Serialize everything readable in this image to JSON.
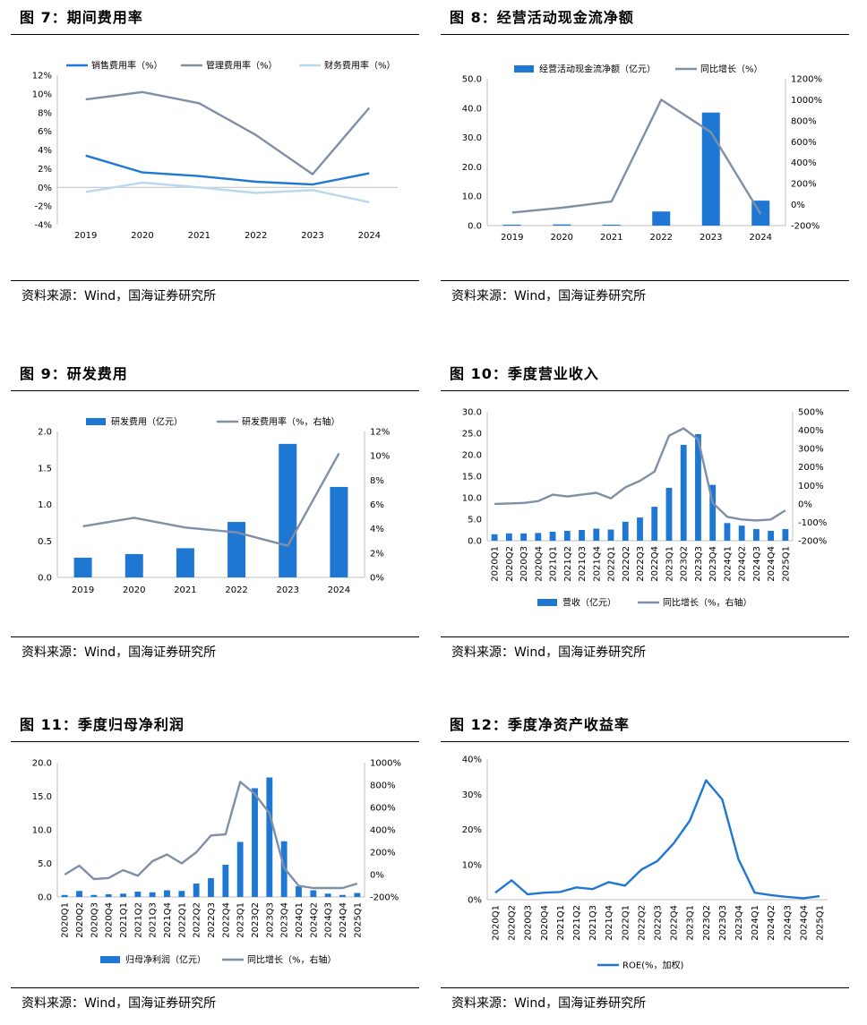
{
  "source": "资料来源：Wind，国海证券研究所",
  "chart_data": [
    {
      "title": "图 7：期间费用率",
      "type": "line",
      "categories": [
        "2019",
        "2020",
        "2021",
        "2022",
        "2023",
        "2024"
      ],
      "y_ticks": [
        "12%",
        "10%",
        "8%",
        "6%",
        "4%",
        "2%",
        "0%",
        "-2%",
        "-4%"
      ],
      "ylim": [
        -4,
        12
      ],
      "legend_position": "top",
      "series": [
        {
          "name": "销售费用率（%）",
          "color": "#1f77d4",
          "values": [
            3.4,
            1.6,
            1.2,
            0.6,
            0.3,
            1.5
          ]
        },
        {
          "name": "管理费用率（%）",
          "color": "#7f8fa6",
          "values": [
            9.4,
            10.2,
            9.0,
            5.6,
            1.4,
            8.5
          ]
        },
        {
          "name": "财务费用率（%）",
          "color": "#b8d8f0",
          "values": [
            -0.5,
            0.5,
            0.0,
            -0.6,
            -0.3,
            -1.6
          ]
        }
      ]
    },
    {
      "title": "图 8：经营活动现金流净额",
      "type": "bar+line",
      "categories": [
        "2019",
        "2020",
        "2021",
        "2022",
        "2023",
        "2024"
      ],
      "y_ticks": [
        "50.0",
        "40.0",
        "30.0",
        "20.0",
        "10.0",
        "0.0"
      ],
      "y2_ticks": [
        "1200%",
        "1000%",
        "800%",
        "600%",
        "400%",
        "200%",
        "0%",
        "-200%"
      ],
      "ylim": [
        0,
        50
      ],
      "y2lim": [
        -200,
        1200
      ],
      "legend_position": "top",
      "bar": {
        "name": "经营活动现金流净额（亿元）",
        "color": "#1f77d4",
        "values": [
          0.3,
          0.4,
          0.3,
          4.8,
          38.5,
          8.5
        ]
      },
      "line": {
        "name": "同比增长（%）",
        "color": "#7f8fa6",
        "values": [
          -75,
          -30,
          30,
          1000,
          690,
          -90
        ]
      }
    },
    {
      "title": "图 9：研发费用",
      "type": "bar+line",
      "categories": [
        "2019",
        "2020",
        "2021",
        "2022",
        "2023",
        "2024"
      ],
      "y_ticks": [
        "2.0",
        "1.5",
        "1.0",
        "0.5",
        "0.0"
      ],
      "y2_ticks": [
        "12%",
        "10%",
        "8%",
        "6%",
        "4%",
        "2%",
        "0%"
      ],
      "ylim": [
        0,
        2
      ],
      "y2lim": [
        0,
        12
      ],
      "legend_position": "top",
      "bar": {
        "name": "研发费用（亿元）",
        "color": "#1f77d4",
        "values": [
          0.27,
          0.32,
          0.4,
          0.76,
          1.83,
          1.24
        ]
      },
      "line": {
        "name": "研发费用率（%，右轴）",
        "color": "#7f8fa6",
        "values": [
          4.2,
          4.9,
          4.1,
          3.7,
          2.6,
          10.2
        ]
      }
    },
    {
      "title": "图 10：季度营业收入",
      "type": "bar+line",
      "categories": [
        "2020Q1",
        "2020Q2",
        "2020Q3",
        "2020Q4",
        "2021Q1",
        "2021Q2",
        "2021Q3",
        "2021Q4",
        "2022Q1",
        "2022Q2",
        "2022Q3",
        "2022Q4",
        "2023Q1",
        "2023Q2",
        "2023Q3",
        "2023Q4",
        "2024Q1",
        "2024Q2",
        "2024Q3",
        "2024Q4",
        "2025Q1"
      ],
      "y_ticks": [
        "30.0",
        "25.0",
        "20.0",
        "15.0",
        "10.0",
        "5.0",
        "0.0"
      ],
      "y2_ticks": [
        "500%",
        "400%",
        "300%",
        "200%",
        "100%",
        "0%",
        "-100%",
        "-200%"
      ],
      "ylim": [
        0,
        30
      ],
      "y2lim": [
        -200,
        500
      ],
      "legend_position": "bottom",
      "bar": {
        "name": "营收（亿元）",
        "color": "#1f77d4",
        "values": [
          1.5,
          1.7,
          1.7,
          1.8,
          2.1,
          2.3,
          2.5,
          2.8,
          2.6,
          4.4,
          5.4,
          7.9,
          12.3,
          22.3,
          24.8,
          13.0,
          4.1,
          3.5,
          2.7,
          2.3,
          2.7
        ]
      },
      "line": {
        "name": "同比增长（%，右轴）",
        "color": "#7f8fa6",
        "values": [
          0,
          2,
          5,
          15,
          50,
          40,
          50,
          60,
          30,
          90,
          125,
          175,
          370,
          410,
          350,
          5,
          -70,
          -85,
          -90,
          -85,
          -35
        ]
      }
    },
    {
      "title": "图 11：季度归母净利润",
      "type": "bar+line",
      "categories": [
        "2020Q1",
        "2020Q2",
        "2020Q3",
        "2020Q4",
        "2021Q1",
        "2021Q2",
        "2021Q3",
        "2021Q4",
        "2022Q1",
        "2022Q2",
        "2022Q3",
        "2022Q4",
        "2023Q1",
        "2023Q2",
        "2023Q3",
        "2023Q4",
        "2024Q1",
        "2024Q2",
        "2024Q3",
        "2024Q4",
        "2025Q1"
      ],
      "y_ticks": [
        "20.0",
        "15.0",
        "10.0",
        "5.0",
        "0.0"
      ],
      "y2_ticks": [
        "1000%",
        "800%",
        "600%",
        "400%",
        "200%",
        "0%",
        "-200%"
      ],
      "ylim": [
        0,
        20
      ],
      "y2lim": [
        -200,
        1000
      ],
      "legend_position": "bottom",
      "bar": {
        "name": "归母净利润（亿元）",
        "color": "#1f77d4",
        "values": [
          0.3,
          0.9,
          0.3,
          0.4,
          0.5,
          0.8,
          0.7,
          1.0,
          0.9,
          2.0,
          2.8,
          4.8,
          8.2,
          16.2,
          17.8,
          8.3,
          1.6,
          1.0,
          0.5,
          0.3,
          0.6
        ]
      },
      "line": {
        "name": "同比增长（%，右轴）",
        "color": "#7f8fa6",
        "values": [
          0,
          80,
          -40,
          -30,
          40,
          -10,
          120,
          180,
          100,
          200,
          350,
          360,
          830,
          720,
          550,
          60,
          -100,
          -120,
          -120,
          -120,
          -80
        ]
      }
    },
    {
      "title": "图 12：季度净资产收益率",
      "type": "line",
      "categories": [
        "2020Q1",
        "2020Q2",
        "2020Q3",
        "2020Q4",
        "2021Q1",
        "2021Q2",
        "2021Q3",
        "2021Q4",
        "2022Q1",
        "2022Q2",
        "2022Q3",
        "2022Q4",
        "2023Q1",
        "2023Q2",
        "2023Q3",
        "2023Q4",
        "2024Q1",
        "2024Q2",
        "2024Q3",
        "2024Q4",
        "2025Q1"
      ],
      "y_ticks": [
        "40%",
        "30%",
        "20%",
        "10%",
        "0%"
      ],
      "ylim": [
        0,
        40
      ],
      "legend_position": "bottom",
      "series": [
        {
          "name": "ROE(%，加权)",
          "color": "#1f77d4",
          "values": [
            2.0,
            5.5,
            1.5,
            2.0,
            2.2,
            3.5,
            3.0,
            5.0,
            4.0,
            8.5,
            11.0,
            16.0,
            22.5,
            34.0,
            28.5,
            11.5,
            2.0,
            1.3,
            0.8,
            0.4,
            1.0
          ]
        }
      ]
    }
  ]
}
